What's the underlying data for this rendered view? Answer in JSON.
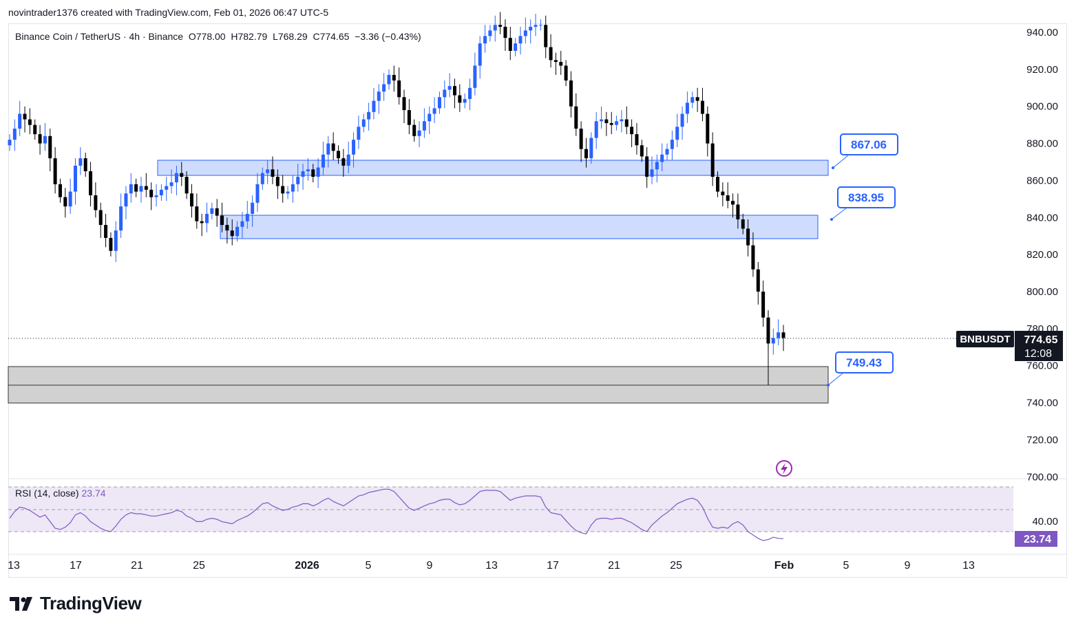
{
  "header": {
    "author_line": "novintrader1376 created with TradingView.com, Feb 01, 2026 06:47 UTC-5"
  },
  "symbol_bar": {
    "text": "Binance Coin / TetherUS · 4h · Binance  O778.00  H782.79  L768.29  C774.65  −3.36 (−0.43%)"
  },
  "price_axis": {
    "ticks": [
      "940.00",
      "920.00",
      "900.00",
      "880.00",
      "860.00",
      "840.00",
      "820.00",
      "800.00",
      "780.00",
      "760.00",
      "740.00",
      "720.00",
      "700.00"
    ]
  },
  "time_axis": {
    "labels": [
      "13",
      "17",
      "21",
      "25",
      "2026",
      "5",
      "9",
      "13",
      "17",
      "21",
      "25",
      "Feb",
      "5",
      "9",
      "13"
    ]
  },
  "price_tag": {
    "symbol": "BNBUSDT",
    "price": "774.65",
    "countdown": "12:08"
  },
  "callouts": {
    "upper": "867.06",
    "middle": "838.95",
    "lower": "749.43"
  },
  "rsi": {
    "label": "RSI (14, close)",
    "value": "23.74",
    "axis_tick": "40.00",
    "tag": "23.74"
  },
  "branding": {
    "logo_text": "TradingView"
  },
  "colors": {
    "candle_up": "#2962ff",
    "candle_down": "#000000",
    "zone_blue_fill": "#cfdcfd",
    "zone_blue_border": "#2962ff",
    "zone_gray_fill": "#d1d1d1",
    "rsi_line": "#7e57c2",
    "rsi_band": "#ede7f6"
  },
  "chart_data": {
    "type": "candlestick",
    "timeframe": "4h",
    "ylim": [
      700,
      945
    ],
    "zones": [
      {
        "name": "resistance-upper",
        "low": 863.5,
        "high": 871.5
      },
      {
        "name": "resistance-middle",
        "low": 829.5,
        "high": 842
      },
      {
        "name": "support-lower",
        "low": 740,
        "high": 759.5
      }
    ],
    "levels": [
      867.06,
      838.95,
      749.43
    ],
    "close_series": [
      882,
      888,
      896,
      893,
      890,
      885,
      880,
      884,
      872,
      858,
      851,
      846,
      854,
      868,
      872,
      865,
      852,
      844,
      836,
      829,
      822,
      833,
      846,
      853,
      858,
      854,
      857,
      855,
      851,
      852,
      855,
      857,
      859,
      864,
      862,
      853,
      846,
      838,
      837,
      842,
      845,
      841,
      836,
      833,
      830,
      835,
      838,
      842,
      848,
      858,
      864,
      866,
      862,
      857,
      853,
      854,
      858,
      862,
      865,
      866,
      862,
      867,
      874,
      880,
      876,
      872,
      868,
      874,
      882,
      889,
      893,
      897,
      903,
      908,
      912,
      917,
      914,
      905,
      898,
      890,
      884,
      887,
      892,
      896,
      899,
      905,
      909,
      911,
      906,
      902,
      904,
      910,
      922,
      934,
      938,
      941,
      944,
      943,
      937,
      930,
      934,
      938,
      941,
      943,
      944,
      944,
      932,
      925,
      924,
      922,
      914,
      900,
      888,
      877,
      872,
      883,
      892,
      893,
      891,
      890,
      892,
      893,
      889,
      885,
      879,
      873,
      862,
      866,
      870,
      874,
      877,
      882,
      889,
      896,
      902,
      905,
      903,
      896,
      880,
      862,
      854,
      852,
      849,
      847,
      839,
      834,
      825,
      812,
      800,
      786,
      772,
      775,
      778,
      775
    ],
    "rsi_series": [
      42,
      48,
      52,
      51,
      49,
      46,
      43,
      45,
      39,
      33,
      32,
      34,
      38,
      45,
      47,
      44,
      39,
      36,
      33,
      31,
      30,
      35,
      41,
      45,
      47,
      46,
      46,
      45,
      44,
      44,
      45,
      46,
      47,
      49,
      48,
      44,
      42,
      39,
      39,
      41,
      42,
      41,
      39,
      38,
      37,
      40,
      42,
      44,
      47,
      51,
      55,
      56,
      53,
      51,
      49,
      50,
      52,
      53,
      55,
      55,
      53,
      55,
      58,
      60,
      57,
      55,
      53,
      56,
      59,
      62,
      63,
      65,
      66,
      67,
      68,
      68,
      66,
      61,
      56,
      51,
      49,
      51,
      53,
      55,
      56,
      58,
      59,
      59,
      56,
      54,
      55,
      58,
      62,
      66,
      67,
      67,
      67,
      66,
      62,
      58,
      60,
      61,
      62,
      62,
      62,
      61,
      52,
      47,
      46,
      45,
      40,
      35,
      31,
      29,
      28,
      36,
      41,
      42,
      42,
      41,
      42,
      42,
      40,
      38,
      35,
      32,
      30,
      36,
      40,
      44,
      47,
      51,
      55,
      57,
      59,
      60,
      58,
      52,
      42,
      34,
      33,
      34,
      33,
      37,
      39,
      36,
      30,
      27,
      24,
      22,
      23,
      25,
      24,
      23.74
    ],
    "rsi_levels": [
      70,
      50,
      30
    ]
  }
}
